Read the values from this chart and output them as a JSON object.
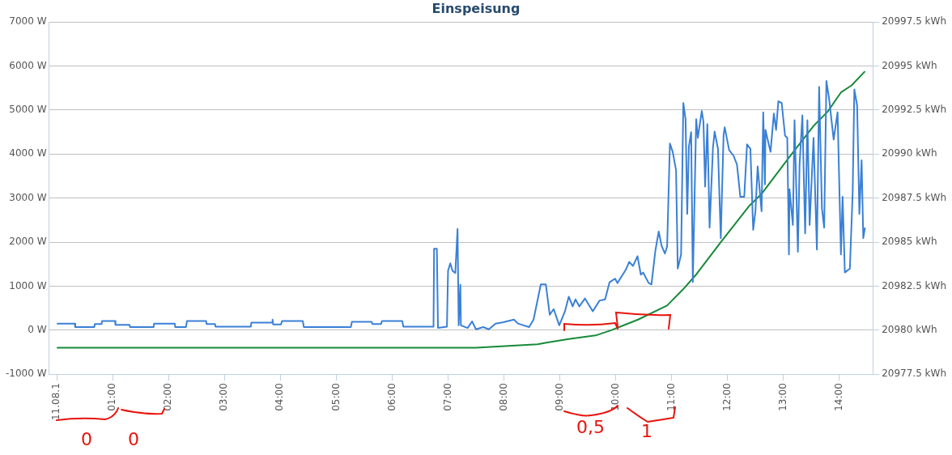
{
  "chart_data": {
    "type": "line",
    "title": "Einspeisung",
    "xlim": [
      -0.14,
      14.6
    ],
    "xticks": [
      {
        "value": 0,
        "label": "11.08.1"
      },
      {
        "value": 1,
        "label": "01:00"
      },
      {
        "value": 2,
        "label": "02:00"
      },
      {
        "value": 3,
        "label": "03:00"
      },
      {
        "value": 4,
        "label": "04:00"
      },
      {
        "value": 5,
        "label": "05:00"
      },
      {
        "value": 6,
        "label": "06:00"
      },
      {
        "value": 7,
        "label": "07:00"
      },
      {
        "value": 8,
        "label": "08:00"
      },
      {
        "value": 9,
        "label": "09:00"
      },
      {
        "value": 10,
        "label": "10:00"
      },
      {
        "value": 11,
        "label": "11:00"
      },
      {
        "value": 12,
        "label": "12:00"
      },
      {
        "value": 13,
        "label": "13:00"
      },
      {
        "value": 14,
        "label": "14:00"
      }
    ],
    "ylim": [
      -1000,
      7000
    ],
    "yticks": [
      {
        "value": -1000,
        "label": "-1000 W"
      },
      {
        "value": 0,
        "label": "0 W"
      },
      {
        "value": 1000,
        "label": "1000 W"
      },
      {
        "value": 2000,
        "label": "2000 W"
      },
      {
        "value": 3000,
        "label": "3000 W"
      },
      {
        "value": 4000,
        "label": "4000 W"
      },
      {
        "value": 5000,
        "label": "5000 W"
      },
      {
        "value": 6000,
        "label": "6000 W"
      },
      {
        "value": 7000,
        "label": "7000 W"
      }
    ],
    "y2lim": [
      20977.5,
      20997.5
    ],
    "y2ticks": [
      {
        "value": 20977.5,
        "label": "20977.5 kWh"
      },
      {
        "value": 20980,
        "label": "20980 kWh"
      },
      {
        "value": 20982.5,
        "label": "20982.5 kWh"
      },
      {
        "value": 20985,
        "label": "20985 kWh"
      },
      {
        "value": 20987.5,
        "label": "20987.5 kWh"
      },
      {
        "value": 20990,
        "label": "20990 kWh"
      },
      {
        "value": 20992.5,
        "label": "20992.5 kWh"
      },
      {
        "value": 20995,
        "label": "20995 kWh"
      },
      {
        "value": 20997.5,
        "label": "20997.5 kWh"
      }
    ],
    "grid": "y",
    "marker": "none",
    "line_style": "solid",
    "annotations": [
      "0",
      "0",
      "0,5",
      "1"
    ],
    "series": [
      {
        "color": "#3a80d6",
        "x": [
          0,
          0.32,
          0.33,
          0.67,
          0.68,
          0.8,
          0.81,
          1.04,
          1.05,
          1.3,
          1.31,
          1.73,
          1.74,
          2.11,
          2.12,
          2.31,
          2.33,
          2.67,
          2.68,
          2.83,
          2.84,
          3.47,
          3.48,
          3.85,
          3.86,
          3.87,
          4.01,
          4.03,
          4.4,
          4.42,
          5.26,
          5.28,
          5.63,
          5.65,
          5.8,
          5.82,
          6.18,
          6.2,
          6.74,
          6.75,
          6.8,
          6.82,
          6.98,
          7.0,
          7.04,
          7.08,
          7.13,
          7.17,
          7.19,
          7.22,
          7.23,
          7.35,
          7.43,
          7.5,
          7.63,
          7.73,
          7.85,
          7.99,
          8.18,
          8.25,
          8.45,
          8.53,
          8.66,
          8.75,
          8.82,
          8.89,
          8.99,
          9.09,
          9.16,
          9.23,
          9.28,
          9.35,
          9.45,
          9.59,
          9.71,
          9.81,
          9.89,
          9.99,
          10.03,
          10.18,
          10.24,
          10.31,
          10.39,
          10.45,
          10.49,
          10.59,
          10.64,
          10.71,
          10.77,
          10.82,
          10.88,
          10.92,
          10.97,
          11.02,
          11.08,
          11.11,
          11.17,
          11.21,
          11.25,
          11.28,
          11.31,
          11.35,
          11.38,
          11.44,
          11.47,
          11.54,
          11.57,
          11.6,
          11.64,
          11.68,
          11.74,
          11.77,
          11.83,
          11.88,
          11.93,
          11.95,
          12.03,
          12.11,
          12.17,
          12.23,
          12.3,
          12.35,
          12.41,
          12.46,
          12.5,
          12.54,
          12.61,
          12.64,
          12.67,
          12.68,
          12.77,
          12.83,
          12.87,
          12.91,
          12.97,
          13.03,
          13.07,
          13.1,
          13.11,
          13.17,
          13.2,
          13.26,
          13.29,
          13.34,
          13.39,
          13.43,
          13.47,
          13.54,
          13.6,
          13.64,
          13.69,
          13.73,
          13.77,
          13.82,
          13.9,
          13.97,
          14.03,
          14.06,
          14.1,
          14.19,
          14.24,
          14.27,
          14.32,
          14.36,
          14.4,
          14.43,
          14.46
        ],
        "values": [
          150,
          150,
          70,
          70,
          140,
          140,
          210,
          210,
          120,
          120,
          70,
          70,
          150,
          150,
          70,
          70,
          210,
          210,
          140,
          140,
          80,
          80,
          170,
          170,
          240,
          130,
          130,
          210,
          210,
          70,
          70,
          190,
          190,
          140,
          140,
          210,
          210,
          80,
          80,
          1850,
          1850,
          50,
          80,
          1350,
          1520,
          1350,
          1300,
          2300,
          110,
          1030,
          110,
          50,
          200,
          20,
          70,
          20,
          150,
          180,
          240,
          150,
          70,
          240,
          1040,
          1040,
          350,
          480,
          110,
          420,
          760,
          540,
          700,
          540,
          720,
          430,
          670,
          700,
          1090,
          1170,
          1070,
          1370,
          1550,
          1460,
          1680,
          1260,
          1310,
          1070,
          1040,
          1810,
          2240,
          1920,
          1740,
          1900,
          4240,
          4050,
          3630,
          1400,
          1720,
          5160,
          4790,
          2640,
          4180,
          4500,
          1090,
          4790,
          4370,
          4980,
          4740,
          3260,
          4680,
          2330,
          4140,
          4510,
          4120,
          2090,
          4420,
          4610,
          4090,
          3960,
          3760,
          3030,
          3030,
          4220,
          4120,
          2280,
          2700,
          3720,
          2700,
          4950,
          3310,
          4550,
          4050,
          4920,
          4550,
          5200,
          5160,
          4420,
          4370,
          1720,
          3200,
          2390,
          4770,
          1780,
          3760,
          4880,
          2200,
          4770,
          2390,
          4370,
          1830,
          5530,
          2760,
          2330,
          5660,
          5240,
          4330,
          4950,
          1720,
          3030,
          1310,
          1400,
          3120,
          5470,
          5100,
          2640,
          3860,
          2090,
          2330
        ]
      },
      {
        "color": "#178a3a",
        "axis": "y2",
        "x": [
          0,
          7.5,
          8.6,
          8.78,
          9.16,
          9.64,
          9.92,
          10.4,
          10.92,
          11.2,
          11.45,
          11.88,
          12.4,
          12.6,
          13.1,
          13.54,
          13.79,
          14.03,
          14.22,
          14.46
        ],
        "values": [
          20979.0,
          20979.0,
          20979.2,
          20979.3,
          20979.5,
          20979.7,
          20980.0,
          20980.6,
          20981.4,
          20982.3,
          20983.2,
          20985.0,
          20987.1,
          20987.7,
          20989.8,
          20991.6,
          20992.4,
          20993.5,
          20993.9,
          20994.7
        ]
      }
    ]
  }
}
